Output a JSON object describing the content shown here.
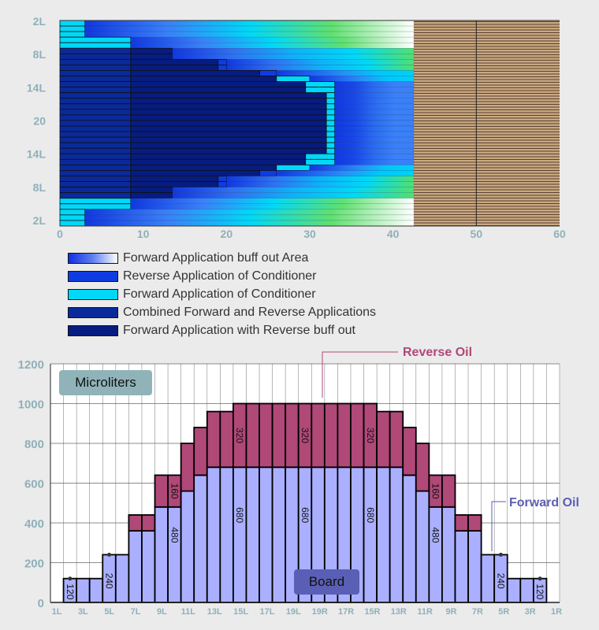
{
  "chart_data": [
    {
      "type": "heatmap",
      "title": "",
      "xlim": [
        0,
        60
      ],
      "x_ticks": [
        0,
        10,
        20,
        30,
        40,
        50,
        60
      ],
      "y_tick_labels": [
        "2L",
        "8L",
        "14L",
        "20",
        "14L",
        "8L",
        "2L"
      ],
      "board_end": 42.5,
      "divider": 50,
      "colors": {
        "c": "#00d8f8",
        "r": "#0f3ce0",
        "n": "#0a2a9a",
        "w": "#061c80",
        "tan": "#c8a880"
      },
      "legend": [
        {
          "key": "g",
          "label": "Forward Application buff out Area"
        },
        {
          "key": "r",
          "label": "Reverse Application of Conditioner"
        },
        {
          "key": "c",
          "label": "Forward Application of Conditioner"
        },
        {
          "key": "n",
          "label": "Combined Forward and Reverse Applications"
        },
        {
          "key": "w",
          "label": "Forward Application with Reverse buff out"
        }
      ],
      "rows": [
        [
          [
            0,
            3,
            "c"
          ],
          [
            3,
            42.5,
            "g1"
          ]
        ],
        [
          [
            0,
            3,
            "c"
          ],
          [
            3,
            42.5,
            "g1"
          ]
        ],
        [
          [
            0,
            3,
            "c"
          ],
          [
            3,
            42.5,
            "g1"
          ]
        ],
        [
          [
            0,
            8.5,
            "c"
          ],
          [
            8.5,
            42.5,
            "g1"
          ]
        ],
        [
          [
            0,
            8.5,
            "c"
          ],
          [
            8.5,
            42.5,
            "g1"
          ]
        ],
        [
          [
            0,
            8.5,
            "n"
          ],
          [
            8.5,
            13.5,
            "w"
          ],
          [
            13.5,
            42.5,
            "g2"
          ]
        ],
        [
          [
            0,
            8.5,
            "n"
          ],
          [
            8.5,
            13.5,
            "w"
          ],
          [
            13.5,
            42.5,
            "g2"
          ]
        ],
        [
          [
            0,
            8.5,
            "n"
          ],
          [
            8.5,
            19,
            "w"
          ],
          [
            19,
            20,
            "r"
          ],
          [
            20,
            42.5,
            "g2"
          ]
        ],
        [
          [
            0,
            8.5,
            "n"
          ],
          [
            8.5,
            19,
            "w"
          ],
          [
            19,
            20,
            "r"
          ],
          [
            20,
            42.5,
            "g2"
          ]
        ],
        [
          [
            0,
            8.5,
            "n"
          ],
          [
            8.5,
            24,
            "w"
          ],
          [
            24,
            26,
            "r"
          ],
          [
            26,
            42.5,
            "g3"
          ]
        ],
        [
          [
            0,
            8.5,
            "n"
          ],
          [
            8.5,
            26,
            "w"
          ],
          [
            26,
            30,
            "c"
          ],
          [
            30,
            42.5,
            "g3"
          ]
        ],
        [
          [
            0,
            8.5,
            "n"
          ],
          [
            8.5,
            29.5,
            "w"
          ],
          [
            29.5,
            33,
            "c"
          ],
          [
            33,
            42.5,
            "g4"
          ]
        ],
        [
          [
            0,
            8.5,
            "n"
          ],
          [
            8.5,
            29.5,
            "w"
          ],
          [
            29.5,
            33,
            "c"
          ],
          [
            33,
            42.5,
            "g4"
          ]
        ],
        [
          [
            0,
            8.5,
            "n"
          ],
          [
            8.5,
            32,
            "w"
          ],
          [
            32,
            33,
            "c"
          ],
          [
            33,
            42.5,
            "g4"
          ]
        ],
        [
          [
            0,
            8.5,
            "n"
          ],
          [
            8.5,
            32,
            "w"
          ],
          [
            32,
            33,
            "c"
          ],
          [
            33,
            42.5,
            "g4"
          ]
        ],
        [
          [
            0,
            8.5,
            "n"
          ],
          [
            8.5,
            32,
            "w"
          ],
          [
            32,
            33,
            "c"
          ],
          [
            33,
            42.5,
            "g4"
          ]
        ],
        [
          [
            0,
            8.5,
            "n"
          ],
          [
            8.5,
            32,
            "w"
          ],
          [
            32,
            33,
            "c"
          ],
          [
            33,
            42.5,
            "g4"
          ]
        ],
        [
          [
            0,
            8.5,
            "n"
          ],
          [
            8.5,
            32,
            "w"
          ],
          [
            32,
            33,
            "c"
          ],
          [
            33,
            42.5,
            "g4"
          ]
        ],
        [
          [
            0,
            8.5,
            "n"
          ],
          [
            8.5,
            32,
            "w"
          ],
          [
            32,
            33,
            "c"
          ],
          [
            33,
            42.5,
            "g4"
          ]
        ],
        [
          [
            0,
            8.5,
            "n"
          ],
          [
            8.5,
            32,
            "w"
          ],
          [
            32,
            33,
            "c"
          ],
          [
            33,
            42.5,
            "g4"
          ]
        ],
        [
          [
            0,
            8.5,
            "n"
          ],
          [
            8.5,
            32,
            "w"
          ],
          [
            32,
            33,
            "c"
          ],
          [
            33,
            42.5,
            "g4"
          ]
        ],
        [
          [
            0,
            8.5,
            "n"
          ],
          [
            8.5,
            32,
            "w"
          ],
          [
            32,
            33,
            "c"
          ],
          [
            33,
            42.5,
            "g4"
          ]
        ],
        [
          [
            0,
            8.5,
            "n"
          ],
          [
            8.5,
            32,
            "w"
          ],
          [
            32,
            33,
            "c"
          ],
          [
            33,
            42.5,
            "g4"
          ]
        ],
        [
          [
            0,
            8.5,
            "n"
          ],
          [
            8.5,
            32,
            "w"
          ],
          [
            32,
            33,
            "c"
          ],
          [
            33,
            42.5,
            "g4"
          ]
        ],
        [
          [
            0,
            8.5,
            "n"
          ],
          [
            8.5,
            29.5,
            "w"
          ],
          [
            29.5,
            33,
            "c"
          ],
          [
            33,
            42.5,
            "g4"
          ]
        ],
        [
          [
            0,
            8.5,
            "n"
          ],
          [
            8.5,
            29.5,
            "w"
          ],
          [
            29.5,
            33,
            "c"
          ],
          [
            33,
            42.5,
            "g4"
          ]
        ],
        [
          [
            0,
            8.5,
            "n"
          ],
          [
            8.5,
            26,
            "w"
          ],
          [
            26,
            30,
            "c"
          ],
          [
            30,
            42.5,
            "g3"
          ]
        ],
        [
          [
            0,
            8.5,
            "n"
          ],
          [
            8.5,
            24,
            "w"
          ],
          [
            24,
            26,
            "r"
          ],
          [
            26,
            42.5,
            "g3"
          ]
        ],
        [
          [
            0,
            8.5,
            "n"
          ],
          [
            8.5,
            19,
            "w"
          ],
          [
            19,
            20,
            "r"
          ],
          [
            20,
            42.5,
            "g2"
          ]
        ],
        [
          [
            0,
            8.5,
            "n"
          ],
          [
            8.5,
            19,
            "w"
          ],
          [
            19,
            20,
            "r"
          ],
          [
            20,
            42.5,
            "g2"
          ]
        ],
        [
          [
            0,
            8.5,
            "n"
          ],
          [
            8.5,
            13.5,
            "w"
          ],
          [
            13.5,
            42.5,
            "g2"
          ]
        ],
        [
          [
            0,
            8.5,
            "n"
          ],
          [
            8.5,
            13.5,
            "w"
          ],
          [
            13.5,
            42.5,
            "g2"
          ]
        ],
        [
          [
            0,
            8.5,
            "c"
          ],
          [
            8.5,
            42.5,
            "g1"
          ]
        ],
        [
          [
            0,
            8.5,
            "c"
          ],
          [
            8.5,
            42.5,
            "g1"
          ]
        ],
        [
          [
            0,
            3,
            "c"
          ],
          [
            3,
            42.5,
            "g1"
          ]
        ],
        [
          [
            0,
            3,
            "c"
          ],
          [
            3,
            42.5,
            "g1"
          ]
        ],
        [
          [
            0,
            3,
            "c"
          ],
          [
            3,
            42.5,
            "g1"
          ]
        ]
      ]
    },
    {
      "type": "bar",
      "stacked": true,
      "ylabel": "Microliters",
      "xlabel": "Board",
      "ylim": [
        0,
        1200
      ],
      "y_ticks": [
        0,
        200,
        400,
        600,
        800,
        1000,
        1200
      ],
      "x_tick_labels": [
        "1L",
        "3L",
        "5L",
        "7L",
        "9L",
        "11L",
        "13L",
        "15L",
        "17L",
        "19L",
        "19R",
        "17R",
        "15R",
        "13R",
        "11R",
        "9R",
        "7R",
        "5R",
        "3R",
        "1R"
      ],
      "series": [
        {
          "name": "Forward Oil",
          "color": "#aab0ff",
          "values": [
            120,
            120,
            120,
            240,
            240,
            360,
            360,
            480,
            480,
            560,
            640,
            680,
            680,
            680,
            680,
            680,
            680,
            680,
            680,
            680,
            680,
            680,
            680,
            680,
            680,
            680,
            640,
            560,
            480,
            480,
            360,
            360,
            240,
            240,
            120,
            120,
            120
          ]
        },
        {
          "name": "Reverse Oil",
          "color": "#b04878",
          "values": [
            0,
            0,
            0,
            0,
            0,
            80,
            80,
            160,
            160,
            240,
            240,
            280,
            280,
            320,
            320,
            320,
            320,
            320,
            320,
            320,
            320,
            320,
            320,
            320,
            280,
            280,
            240,
            240,
            160,
            160,
            80,
            80,
            0,
            0,
            0,
            0,
            0
          ]
        }
      ],
      "data_labels": [
        {
          "bar": 0,
          "series": "Forward Oil",
          "text": "120",
          "dot": true
        },
        {
          "bar": 3,
          "series": "Forward Oil",
          "text": "240",
          "dot": true
        },
        {
          "bar": 8,
          "series": "Forward Oil",
          "text": "480"
        },
        {
          "bar": 8,
          "series": "Reverse Oil",
          "text": "160"
        },
        {
          "bar": 13,
          "series": "Forward Oil",
          "text": "680"
        },
        {
          "bar": 13,
          "series": "Reverse Oil",
          "text": "320"
        },
        {
          "bar": 18,
          "series": "Forward Oil",
          "text": "680"
        },
        {
          "bar": 18,
          "series": "Reverse Oil",
          "text": "320"
        },
        {
          "bar": 23,
          "series": "Forward Oil",
          "text": "680"
        },
        {
          "bar": 23,
          "series": "Reverse Oil",
          "text": "320"
        },
        {
          "bar": 28,
          "series": "Forward Oil",
          "text": "480"
        },
        {
          "bar": 28,
          "series": "Reverse Oil",
          "text": "160"
        },
        {
          "bar": 33,
          "series": "Forward Oil",
          "text": "240",
          "dot": true
        },
        {
          "bar": 36,
          "series": "Forward Oil",
          "text": "120",
          "dot": true
        }
      ],
      "annotations": {
        "reverse": "Reverse Oil",
        "forward": "Forward Oil"
      }
    }
  ]
}
